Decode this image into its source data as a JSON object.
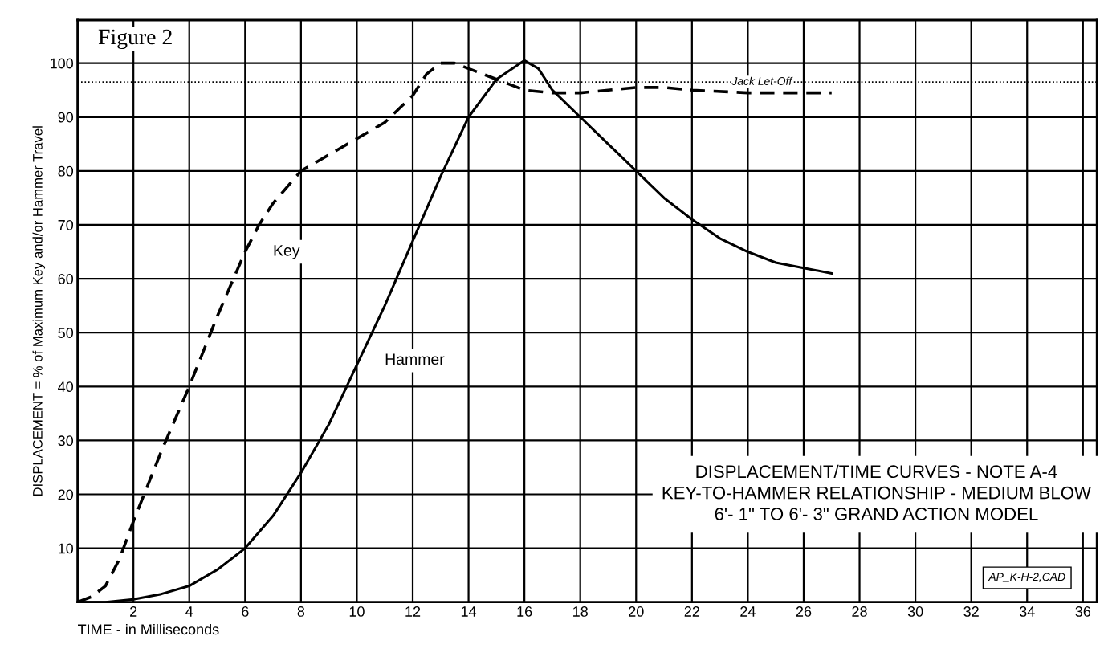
{
  "chart_data": {
    "type": "line",
    "title": "Figure 2",
    "xlabel": "TIME - in Milliseconds",
    "ylabel": "DISPLACEMENT = % of Maximum Key and/or Hammer Travel",
    "xlim": [
      0,
      36.5
    ],
    "ylim": [
      0,
      108
    ],
    "xticks": [
      2,
      4,
      6,
      8,
      10,
      12,
      14,
      16,
      18,
      20,
      22,
      24,
      26,
      28,
      30,
      32,
      34,
      36
    ],
    "yticks": [
      10,
      20,
      30,
      40,
      50,
      60,
      70,
      80,
      90,
      100
    ],
    "grid": true,
    "legend": false,
    "series": [
      {
        "name": "Key",
        "color": "#000000",
        "line_style": "dashed",
        "x": [
          0,
          0.5,
          1,
          1.5,
          2,
          3,
          4,
          5,
          6,
          6.5,
          7,
          8,
          9,
          10,
          11,
          12,
          12.5,
          13,
          13.5,
          14,
          15,
          16,
          17,
          18,
          19,
          20,
          21,
          22,
          24,
          26,
          27
        ],
        "values": [
          0,
          1,
          3,
          8,
          15,
          28,
          40,
          53,
          65,
          70,
          74,
          80,
          83,
          86,
          89,
          94,
          98,
          100,
          100,
          99,
          97,
          95,
          94.5,
          94.5,
          95,
          95.5,
          95.5,
          95,
          94.5,
          94.5,
          94.5
        ]
      },
      {
        "name": "Hammer",
        "color": "#000000",
        "line_style": "solid",
        "x": [
          0,
          1,
          2,
          3,
          4,
          5,
          6,
          7,
          8,
          9,
          10,
          11,
          12,
          13,
          14,
          15,
          16,
          16.5,
          17,
          18,
          19,
          20,
          21,
          22,
          23,
          24,
          25,
          26,
          27
        ],
        "values": [
          0,
          0,
          0.5,
          1.5,
          3,
          6,
          10,
          16,
          24,
          33,
          44,
          55,
          67,
          79,
          90,
          97,
          100.5,
          99,
          95,
          90,
          85,
          80,
          75,
          71,
          67.5,
          65,
          63,
          62,
          61
        ]
      }
    ],
    "ref_lines": [
      {
        "axis": "y",
        "value": 96.5,
        "label": "Jack Let-Off",
        "line_style": "dotted",
        "color": "#000000"
      }
    ],
    "annotations": [
      "DISPLACEMENT/TIME CURVES - NOTE A-4\nKEY-TO-HAMMER RELATIONSHIP - MEDIUM BLOW\n6'- 1\" TO 6'- 3\" GRAND ACTION MODEL",
      "AP_K-H-2,CAD"
    ]
  }
}
